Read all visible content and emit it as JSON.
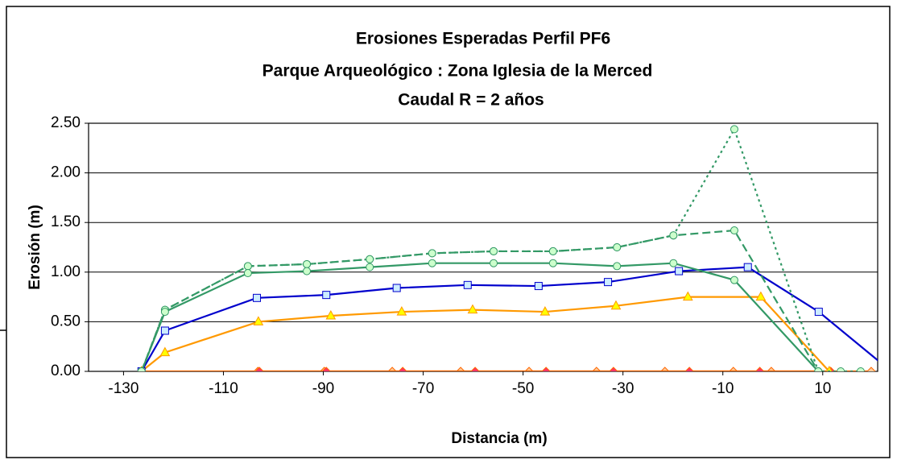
{
  "chart_data": {
    "type": "line",
    "title": [
      "Erosiones Esperadas Perfil PF6",
      "Parque Arqueológico : Zona Iglesia de la Merced",
      "Caudal R = 2 años"
    ],
    "x_label": "Distancia (m)",
    "y_label": "Erosión (m)",
    "xlim": [
      -137,
      21
    ],
    "xticks": [
      -130,
      -110,
      -90,
      -70,
      -50,
      -30,
      -10,
      10
    ],
    "ylim": [
      0,
      2.5
    ],
    "yticks": [
      {
        "value": 0,
        "label": "0.00"
      },
      {
        "value": 0.5,
        "label": "0.50"
      },
      {
        "value": 1,
        "label": "1.00"
      },
      {
        "value": 1.5,
        "label": "1.50"
      },
      {
        "value": 2,
        "label": "2.00"
      },
      {
        "value": 2.5,
        "label": "2.50"
      }
    ],
    "grid": true,
    "series": [
      {
        "color": "#ff6600",
        "marker": "diamond",
        "marker_fill": "#ffcc99",
        "dash": "solid",
        "x": [
          -126.4,
          -103.1,
          -89.8,
          -76.2,
          -62.5,
          -48.8,
          -35.3,
          -21.6,
          -7.9,
          -0.3,
          19.7
        ],
        "values": [
          0,
          0,
          0,
          0,
          0,
          0,
          0,
          0,
          0,
          0,
          0
        ]
      },
      {
        "color": "#ff6600",
        "marker": "diamond",
        "marker_fill": "#ff3366",
        "dash": "solid",
        "x": [
          -102.8,
          -89.4,
          -74.1,
          -59.6,
          -45.4,
          -31.9,
          -16.7,
          -2.6,
          11.6
        ],
        "values": [
          0,
          0,
          0,
          0,
          0,
          0,
          0,
          0,
          0
        ]
      },
      {
        "color": "#ff9900",
        "marker": "triangle",
        "marker_fill": "#ffff00",
        "dash": "solid",
        "x": [
          -126.4,
          -121.7,
          -103,
          -88.5,
          -74.3,
          -60.1,
          -45.6,
          -31.4,
          -17,
          -2.4,
          11.3
        ],
        "values": [
          0,
          0.19,
          0.5,
          0.56,
          0.6,
          0.62,
          0.6,
          0.66,
          0.75,
          0.75,
          0
        ]
      },
      {
        "color": "#0000cc",
        "marker": "square",
        "marker_fill": "#ccecff",
        "dash": "solid",
        "x": [
          -126.4,
          -121.7,
          -103.3,
          -89.4,
          -75.3,
          -61.1,
          -46.9,
          -33,
          -18.8,
          -5,
          9.2,
          23.7
        ],
        "values": [
          0,
          0.41,
          0.74,
          0.77,
          0.84,
          0.87,
          0.86,
          0.9,
          1.01,
          1.05,
          0.6,
          0
        ]
      },
      {
        "color": "#339966",
        "marker": "circle",
        "marker_fill": "#ccffcc",
        "dash": "dotted",
        "x": [
          -126.4,
          -121.7,
          -105.1,
          -93.3,
          -80.7,
          -68.2,
          -55.9,
          -44,
          -31.2,
          -19.9,
          -7.7,
          9.1,
          13.6,
          17.6
        ],
        "values": [
          0,
          0.62,
          1.06,
          1.08,
          1.13,
          1.19,
          1.21,
          1.21,
          1.25,
          1.37,
          2.44,
          0,
          0,
          0
        ]
      },
      {
        "color": "#339966",
        "marker": "circle",
        "marker_fill": "#ccffcc",
        "dash": "dashed",
        "x": [
          -126.4,
          -121.7,
          -105.1,
          -93.3,
          -80.7,
          -68.2,
          -55.9,
          -44,
          -31.2,
          -19.9,
          -7.7,
          9.1
        ],
        "values": [
          0,
          0.62,
          1.06,
          1.08,
          1.13,
          1.19,
          1.21,
          1.21,
          1.25,
          1.37,
          1.42,
          0
        ]
      },
      {
        "color": "#339966",
        "marker": "circle",
        "marker_fill": "#ccffcc",
        "dash": "solid",
        "x": [
          -126.4,
          -121.7,
          -105.1,
          -93.3,
          -80.7,
          -68.2,
          -55.9,
          -44,
          -31.2,
          -19.9,
          -7.7,
          9.1
        ],
        "values": [
          0,
          0.6,
          0.99,
          1.01,
          1.05,
          1.09,
          1.09,
          1.09,
          1.06,
          1.09,
          0.92,
          0
        ]
      }
    ]
  }
}
